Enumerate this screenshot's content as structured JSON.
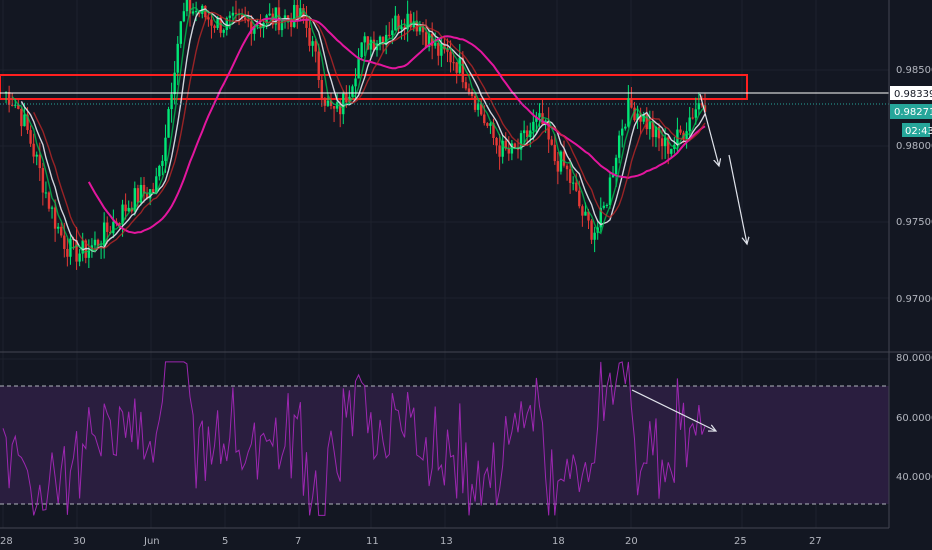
{
  "chart_data": [
    {
      "type": "candlestick",
      "title": "",
      "x_tick_labels": [
        "28",
        "30",
        "Jun",
        "5",
        "7",
        "11",
        "13",
        "18",
        "20",
        "25",
        "27"
      ],
      "y_tick_labels": [
        "0.98500",
        "0.98000",
        "0.97500",
        "0.97000"
      ],
      "ylim": [
        0.9655,
        0.9905
      ],
      "grid": true,
      "last_price": "0.98271",
      "last_price_color": "#26a69a",
      "countdown": "02:43",
      "level_line": "0.98339",
      "resistance_zone": [
        0.98323,
        0.9844
      ],
      "moving_averages": [
        {
          "color": "#d1d4dc"
        },
        {
          "color": "#e3169e"
        },
        {
          "color": "#00c853"
        },
        {
          "color": "#c62828"
        }
      ],
      "candle_colors": {
        "up": "#00e676",
        "down": "#e53935"
      },
      "projection_arrows": [
        {
          "from": [
            0.98339,
            "22"
          ],
          "to": [
            0.9786,
            "22"
          ]
        },
        {
          "from": [
            0.9795,
            "23"
          ],
          "to": [
            0.9728,
            "24"
          ]
        }
      ],
      "price_path_markers": [
        {
          "x": "28",
          "y": 0.9835
        },
        {
          "x": "30",
          "y": 0.973
        },
        {
          "x": "Jun",
          "y": 0.977
        },
        {
          "x": "4",
          "y": 0.989
        },
        {
          "x": "5",
          "y": 0.988
        },
        {
          "x": "7",
          "y": 0.9885
        },
        {
          "x": "10",
          "y": 0.9822
        },
        {
          "x": "11",
          "y": 0.987
        },
        {
          "x": "12",
          "y": 0.9885
        },
        {
          "x": "13",
          "y": 0.986
        },
        {
          "x": "15",
          "y": 0.9795
        },
        {
          "x": "17",
          "y": 0.9815
        },
        {
          "x": "18",
          "y": 0.979
        },
        {
          "x": "19",
          "y": 0.9745
        },
        {
          "x": "20",
          "y": 0.9825
        },
        {
          "x": "21",
          "y": 0.98
        },
        {
          "x": "22",
          "y": 0.983
        }
      ]
    },
    {
      "type": "line",
      "title": "",
      "series_color": "#9c27b0",
      "y_tick_labels": [
        "80.0000",
        "60.0000",
        "40.0000"
      ],
      "ylim": [
        26,
        81
      ],
      "band": [
        30,
        70
      ],
      "band_color": "#2a1e3f",
      "divergence_arrow": {
        "from": [
          68.5,
          "20"
        ],
        "to": [
          54,
          "22"
        ]
      }
    }
  ]
}
